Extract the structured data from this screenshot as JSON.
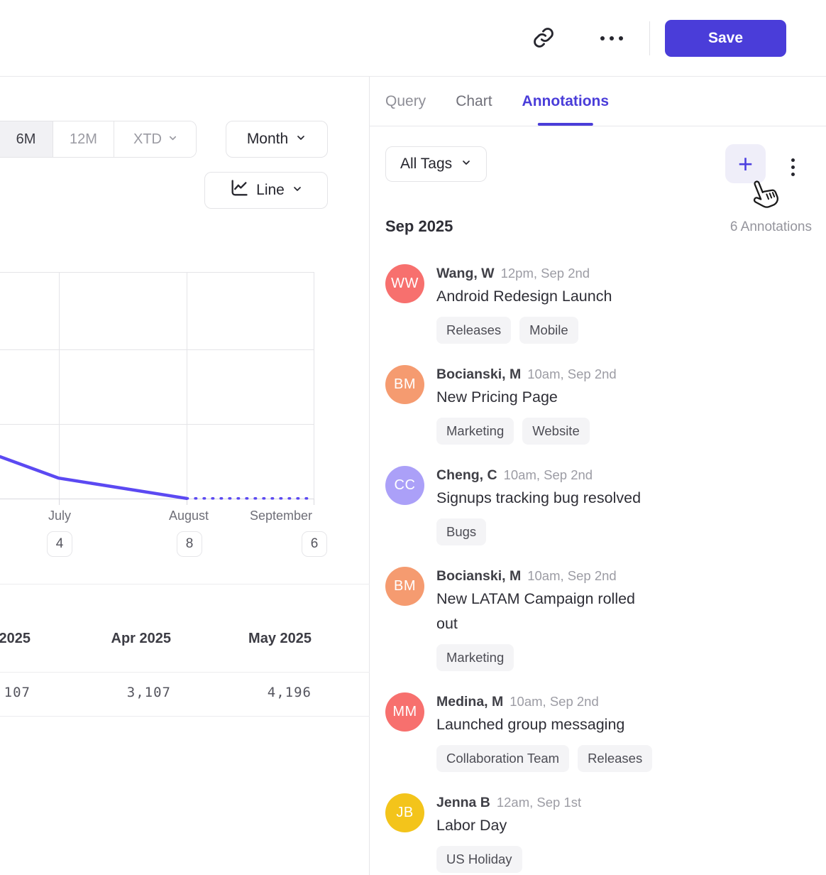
{
  "header": {
    "save_label": "Save"
  },
  "icons": {
    "link": "chain-link",
    "more": "horizontal-ellipsis",
    "kebab": "vertical-ellipsis",
    "chevron": "chevron-down",
    "chart_type": "line-chart",
    "add": "+",
    "cursor": "pointing-hand"
  },
  "tabs": {
    "items": [
      "Query",
      "Chart",
      "Annotations"
    ],
    "active": "Annotations"
  },
  "toolbar": {
    "tag_filter_label": "All Tags",
    "add_button": "+"
  },
  "annotations": {
    "group_title": "Sep 2025",
    "count_label": "6 Annotations",
    "items": [
      {
        "initials": "WW",
        "avatar_color": "#f7706e",
        "author": "Wang, W",
        "timestamp": "12pm, Sep 2nd",
        "title": "Android Redesign Launch",
        "tags": [
          "Releases",
          "Mobile"
        ]
      },
      {
        "initials": "BM",
        "avatar_color": "#f59b70",
        "author": "Bocianski, M",
        "timestamp": "10am, Sep 2nd",
        "title": "New Pricing Page",
        "tags": [
          "Marketing",
          "Website"
        ]
      },
      {
        "initials": "CC",
        "avatar_color": "#aba0f8",
        "author": "Cheng, C",
        "timestamp": "10am, Sep 2nd",
        "title": "Signups tracking bug resolved",
        "tags": [
          "Bugs"
        ]
      },
      {
        "initials": "BM",
        "avatar_color": "#f59b70",
        "author": "Bocianski, M",
        "timestamp": "10am, Sep 2nd",
        "title": "New LATAM Campaign rolled out",
        "tags": [
          "Marketing"
        ]
      },
      {
        "initials": "MM",
        "avatar_color": "#f7706e",
        "author": "Medina, M",
        "timestamp": "10am, Sep 2nd",
        "title": "Launched group messaging",
        "tags": [
          "Collaboration Team",
          "Releases"
        ]
      },
      {
        "initials": "JB",
        "avatar_color": "#f3c41b",
        "author": "Jenna B",
        "timestamp": "12am, Sep 1st",
        "title": "Labor Day",
        "tags": [
          "US Holiday"
        ]
      }
    ]
  },
  "chart_controls": {
    "range_options": [
      "6M",
      "12M",
      "XTD"
    ],
    "range_active": "6M",
    "interval": "Month",
    "chart_type": "Line"
  },
  "chart_data": {
    "type": "line",
    "x_labels": [
      "July",
      "August",
      "September"
    ],
    "annotation_counts": [
      {
        "label": "July",
        "count": "4"
      },
      {
        "label": "August",
        "count": "8"
      },
      {
        "label": "September",
        "count": "6"
      }
    ],
    "line_color": "#5b49f2",
    "grid": true,
    "y_axis_labels_visible": false,
    "series": [
      {
        "name": "metric (clipped on left)",
        "points_frac": [
          [
            0,
            0.8
          ],
          [
            0.187,
            0.893
          ],
          [
            0.594,
            0.981
          ]
        ],
        "projection_frac": [
          [
            0.594,
            0.981
          ],
          [
            1,
            0.981
          ]
        ],
        "projection_style": "dotted"
      }
    ]
  },
  "table": {
    "headers": [
      "2025",
      "Apr 2025",
      "May 2025"
    ],
    "values": [
      "107",
      "3,107",
      "4,196"
    ]
  }
}
